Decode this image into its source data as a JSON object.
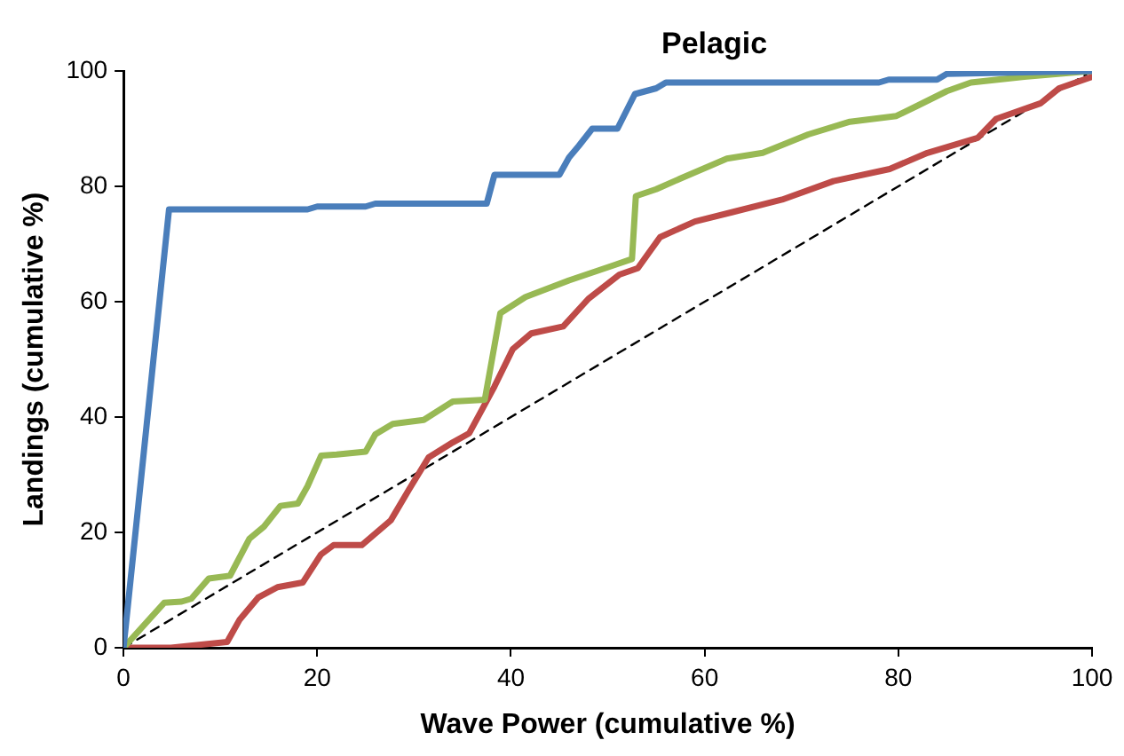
{
  "chart_data": {
    "type": "line",
    "title": "Pelagic",
    "xlabel": "Wave Power (cumulative %)",
    "ylabel": "Landings (cumulative %)",
    "xlim": [
      0,
      100
    ],
    "xticks": [
      0,
      20,
      40,
      60,
      80,
      100
    ],
    "ylim": [
      0,
      100
    ],
    "yticks": [
      0,
      20,
      40,
      60,
      80,
      100
    ],
    "grid": false,
    "legend": false,
    "marker": "none",
    "line_style": "solid",
    "series": [
      {
        "color": "#4a7ebb",
        "x": [
          0,
          4.7,
          19,
          20,
          25,
          26,
          37.5,
          38.3,
          45,
          46,
          47,
          48.4,
          51,
          52.8,
          55,
          56,
          78,
          79,
          84,
          85,
          100
        ],
        "values": [
          0,
          76,
          76,
          76.5,
          76.5,
          77,
          77,
          82,
          82,
          85,
          87,
          90,
          90,
          96,
          97,
          98,
          98,
          98.5,
          98.5,
          99.5,
          100
        ]
      },
      {
        "color": "#98b954",
        "x": [
          0,
          4.2,
          6,
          7,
          8.8,
          11,
          13,
          14.5,
          16.2,
          18,
          19,
          20.4,
          22,
          25,
          26,
          27.8,
          31,
          34,
          37.3,
          38.9,
          41.5,
          46,
          50.6,
          52.5,
          52.9,
          55,
          57.7,
          62.3,
          66,
          70.7,
          75,
          79.8,
          82,
          85,
          87.5,
          93,
          100
        ],
        "values": [
          0,
          7.8,
          8,
          8.5,
          12,
          12.5,
          18.9,
          21,
          24.6,
          25,
          28,
          33.3,
          33.5,
          34,
          37,
          38.8,
          39.5,
          42.7,
          43,
          58,
          60.8,
          63.7,
          66.3,
          67.4,
          78.3,
          79.5,
          81.5,
          84.8,
          85.8,
          89,
          91.2,
          92.2,
          94,
          96.5,
          98,
          99,
          100
        ]
      },
      {
        "color": "#be4b48",
        "x": [
          0,
          4.9,
          10.7,
          12,
          13.9,
          15.9,
          18.5,
          20.4,
          21.7,
          24.6,
          27.6,
          29.5,
          31.5,
          34,
          35.7,
          38.3,
          40.2,
          42.1,
          45.4,
          48,
          51.2,
          53.1,
          55.4,
          59,
          62.8,
          68,
          73.3,
          79.1,
          83,
          88.2,
          90.1,
          94.7,
          96.6,
          100
        ],
        "values": [
          0,
          0,
          1,
          4.9,
          8.7,
          10.5,
          11.3,
          16.2,
          17.8,
          17.8,
          22.1,
          27.5,
          33,
          35.6,
          37.2,
          45.3,
          51.8,
          54.5,
          55.7,
          60.5,
          64.7,
          65.8,
          71.2,
          73.9,
          75.5,
          77.7,
          80.9,
          83,
          85.8,
          88.4,
          91.7,
          94.4,
          97,
          99
        ]
      },
      {
        "color": "#000000",
        "line_style": "dashed",
        "x": [
          0,
          100
        ],
        "values": [
          0,
          100
        ]
      }
    ]
  }
}
